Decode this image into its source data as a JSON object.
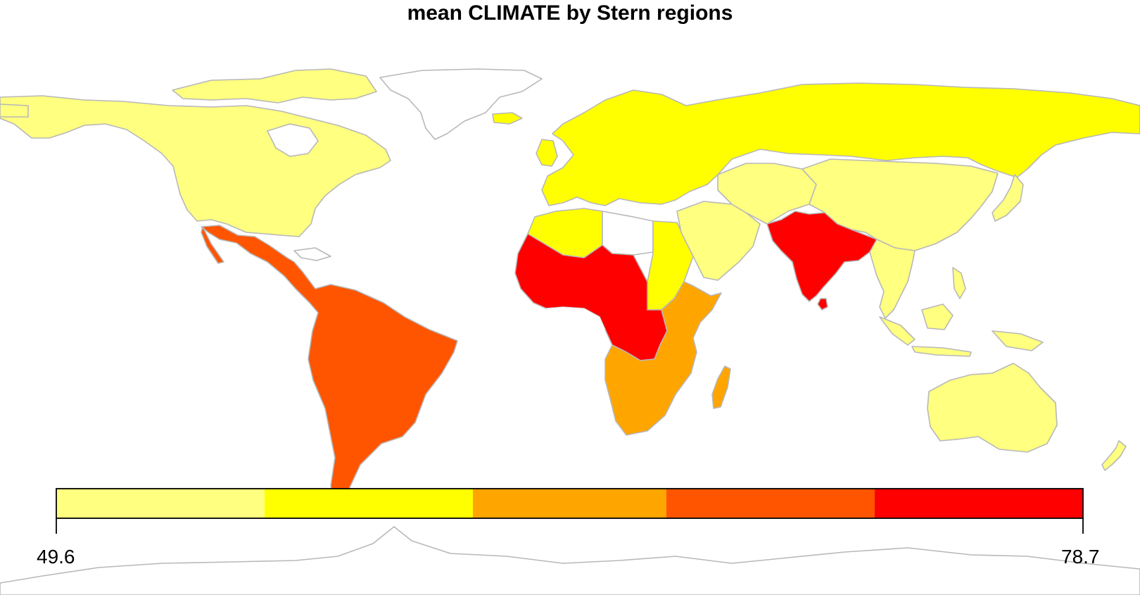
{
  "title": "mean CLIMATE by Stern regions",
  "legend": {
    "min_label": "49.6",
    "max_label": "78.7",
    "min": 49.6,
    "max": 78.7,
    "bins": [
      {
        "color": "#ffff80"
      },
      {
        "color": "#ffff00"
      },
      {
        "color": "#ffa500"
      },
      {
        "color": "#ff5500"
      },
      {
        "color": "#ff0000"
      }
    ]
  },
  "colors": {
    "no_data": "#ffffff",
    "border": "#b8b8b8"
  },
  "regions": [
    {
      "id": "north-america",
      "bin": 0
    },
    {
      "id": "europe-russia",
      "bin": 1
    },
    {
      "id": "north-africa-maghreb",
      "bin": 1
    },
    {
      "id": "egypt-sudan",
      "bin": 1
    },
    {
      "id": "middle-east",
      "bin": 0
    },
    {
      "id": "china-east-asia",
      "bin": 0
    },
    {
      "id": "central-asia",
      "bin": 0
    },
    {
      "id": "southeast-asia",
      "bin": 0
    },
    {
      "id": "japan",
      "bin": 0
    },
    {
      "id": "australia-nz",
      "bin": 0
    },
    {
      "id": "latin-america",
      "bin": 3
    },
    {
      "id": "west-central-africa",
      "bin": 4
    },
    {
      "id": "south-asia",
      "bin": 4
    },
    {
      "id": "east-southern-africa",
      "bin": 2
    }
  ]
}
